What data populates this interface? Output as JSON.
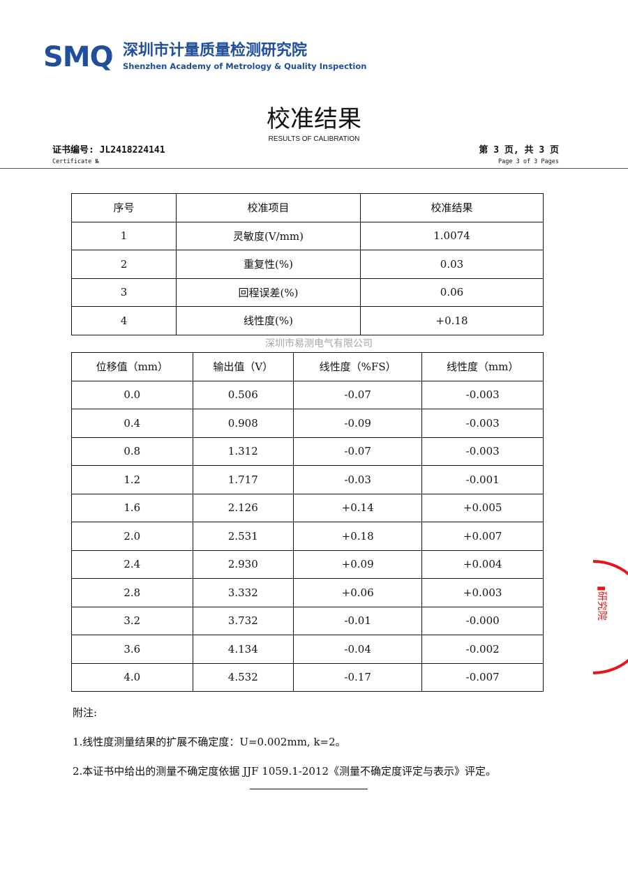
{
  "header": {
    "logo_mark": "SMQ",
    "org_cn": "深圳市计量质量检测研究院",
    "org_en": "Shenzhen Academy of Metrology & Quality Inspection",
    "title": "校准结果",
    "subtitle": "RESULTS OF CALIBRATION",
    "certificate_label": "证书编号: JL2418224141",
    "certificate_label_en": "Certificate №",
    "page_label": "第 3 页, 共 3 页",
    "page_label_en": "Page 3 of 3 Pages"
  },
  "summary_table": {
    "headers": [
      "序号",
      "校准项目",
      "校准结果"
    ],
    "rows": [
      [
        "1",
        "灵敏度(V/mm)",
        "1.0074"
      ],
      [
        "2",
        "重复性(%)",
        "0.03"
      ],
      [
        "3",
        "回程误差(%)",
        "0.06"
      ],
      [
        "4",
        "线性度(%)",
        "+0.18"
      ]
    ]
  },
  "linearity_table": {
    "headers": [
      "位移值（mm）",
      "输出值（V）",
      "线性度（%FS）",
      "线性度（mm）"
    ],
    "rows": [
      [
        "0.0",
        "0.506",
        "-0.07",
        "-0.003"
      ],
      [
        "0.4",
        "0.908",
        "-0.09",
        "-0.003"
      ],
      [
        "0.8",
        "1.312",
        "-0.07",
        "-0.003"
      ],
      [
        "1.2",
        "1.717",
        "-0.03",
        "-0.001"
      ],
      [
        "1.6",
        "2.126",
        "+0.14",
        "+0.005"
      ],
      [
        "2.0",
        "2.531",
        "+0.18",
        "+0.007"
      ],
      [
        "2.4",
        "2.930",
        "+0.09",
        "+0.004"
      ],
      [
        "2.8",
        "3.332",
        "+0.06",
        "+0.003"
      ],
      [
        "3.2",
        "3.732",
        "-0.01",
        "-0.000"
      ],
      [
        "3.6",
        "4.134",
        "-0.04",
        "-0.002"
      ],
      [
        "4.0",
        "4.532",
        "-0.17",
        "-0.007"
      ]
    ]
  },
  "notes": {
    "label": "附注:",
    "items": [
      "1.线性度测量结果的扩展不确定度：U=0.002mm, k=2。",
      "2.本证书中给出的测量不确定度依据 JJF 1059.1-2012《测量不确定度评定与表示》评定。"
    ]
  },
  "watermark": "深圳市易测电气有限公司",
  "stamp": {
    "text": "研究院",
    "color": "#e8141c"
  },
  "colors": {
    "brand": "#1f4e9c"
  }
}
